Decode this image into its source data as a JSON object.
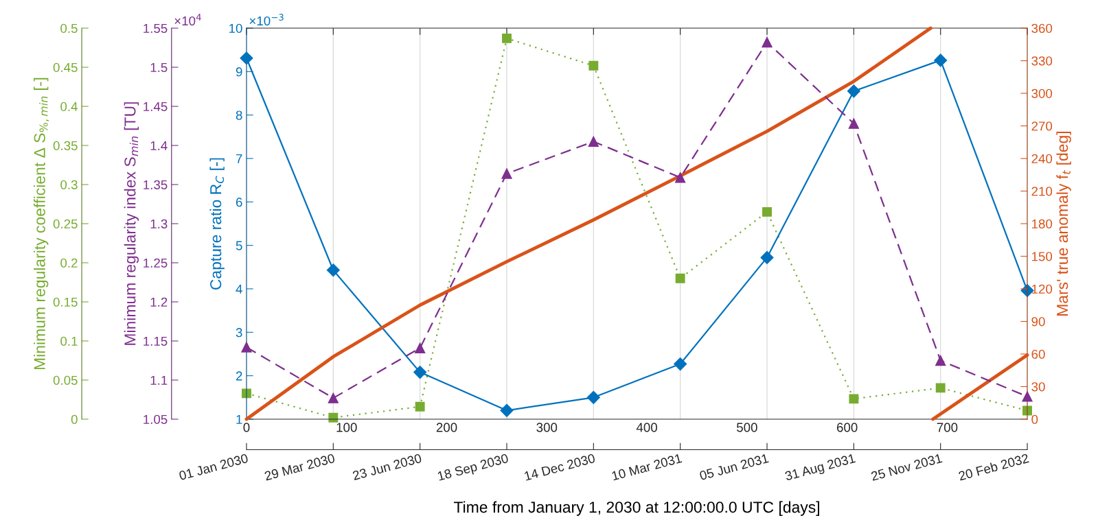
{
  "chart_data": [
    {
      "type": "line",
      "xlabel": "Time from January 1, 2030 at 12:00:00.0 UTC [days]",
      "ylabel": "Capture ratio R$_{C}$ [-]",
      "y2label": "Mars' true anomaly f$_{t}$ [deg]",
      "y3label": "Minimum regularity index S$_{min}$ [TU]",
      "x": [
        0,
        86.67,
        173.33,
        260,
        346.67,
        433.33,
        520,
        606.67,
        693.33,
        780
      ],
      "xlim": [
        0,
        780
      ],
      "xticks": [
        0,
        100,
        200,
        300,
        400,
        500,
        600,
        700
      ],
      "ylim": [
        1,
        10
      ],
      "yticks": [
        1,
        2,
        3,
        4,
        5,
        6,
        7,
        8,
        9,
        10
      ],
      "y2lim": [
        0,
        360
      ],
      "y2ticks": [
        0,
        30,
        60,
        90,
        120,
        150,
        180,
        210,
        240,
        270,
        300,
        330,
        360
      ],
      "y3lim": [
        1.05,
        1.55
      ],
      "y3ticks": [
        1.05,
        1.1,
        1.15,
        1.2,
        1.25,
        1.3,
        1.35,
        1.4,
        1.45,
        1.5,
        1.55
      ],
      "annotations": [
        "×10$^{−3}$",
        "×10$^{4}$"
      ],
      "series": [
        {
          "axis": "y",
          "color": "#0072bd",
          "marker": "diamond",
          "line_style": "solid",
          "values": [
            9.31,
            4.43,
            2.08,
            1.2,
            1.5,
            2.27,
            4.72,
            8.55,
            9.26,
            3.96
          ]
        },
        {
          "axis": "y3",
          "color": "#7e2f8e",
          "marker": "triangle",
          "line_style": "dashed",
          "values": [
            1.142,
            1.077,
            1.141,
            1.364,
            1.405,
            1.359,
            1.532,
            1.428,
            1.125,
            1.079
          ]
        },
        {
          "axis": "y2",
          "color": "#d95319",
          "line_style": "solid",
          "x": [
            0,
            86.67,
            173.33,
            260,
            346.67,
            433.33,
            520,
            606.67,
            683.5,
            684.6,
            685.7,
            780
          ],
          "values": [
            0,
            57.5,
            105,
            145,
            183.5,
            224,
            265,
            311,
            360,
            null,
            0,
            59
          ]
        }
      ]
    },
    {
      "type": "line",
      "ylabel": "Minimum regularity coefficient Δ S$_{%,min}$ [-]",
      "categories": [
        "01 Jan 2030",
        "29 Mar 2030",
        "23 Jun 2030",
        "18 Sep 2030",
        "14 Dec 2030",
        "10 Mar 2031",
        "05 Jun 2031",
        "31 Aug 2031",
        "25 Nov 2031",
        "20 Feb 2032"
      ],
      "ylim": [
        0,
        0.5
      ],
      "yticks": [
        0,
        0.05,
        0.1,
        0.15,
        0.2,
        0.25,
        0.3,
        0.35,
        0.4,
        0.45,
        0.5
      ],
      "grid": "x",
      "series": [
        {
          "color": "#77ac30",
          "marker": "square",
          "line_style": "dotted",
          "values": [
            0.033,
            0.002,
            0.016,
            0.487,
            0.452,
            0.18,
            0.265,
            0.026,
            0.04,
            0.011
          ]
        }
      ]
    }
  ]
}
